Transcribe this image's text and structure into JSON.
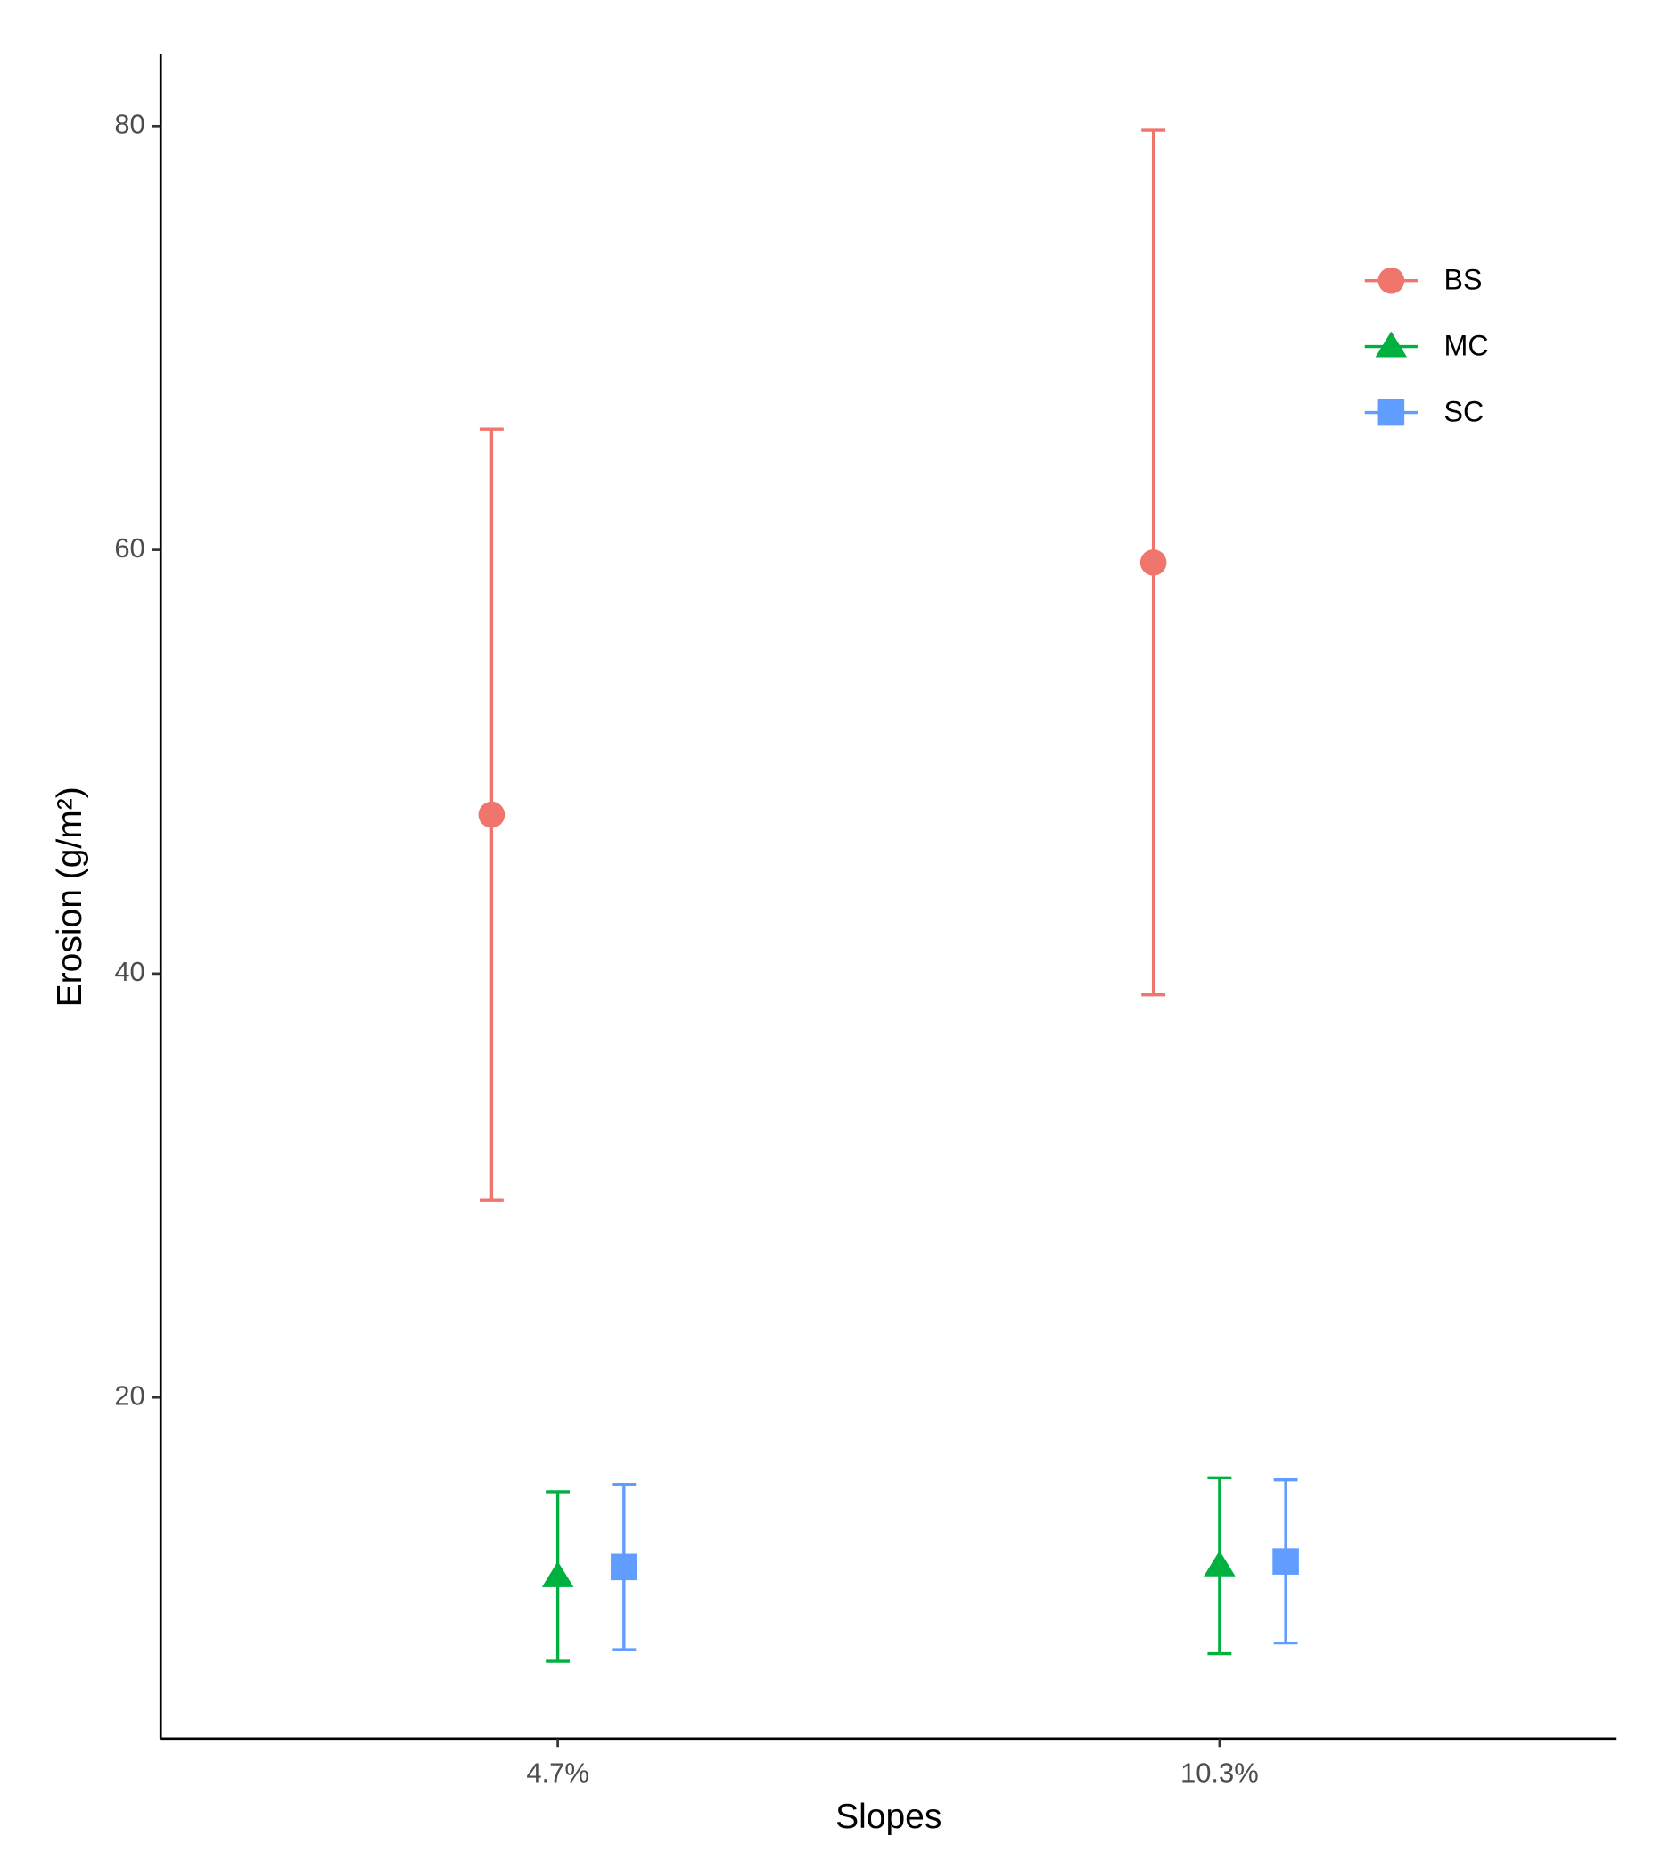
{
  "chart_data": {
    "type": "errorpoint",
    "x_label": "Slopes",
    "y_label": "Erosion (g/m²)",
    "categories": [
      "4.7%",
      "10.3%"
    ],
    "series": [
      {
        "name": "BS",
        "color": "#f0766d",
        "marker": "circle",
        "values": [
          47.5,
          59.4
        ],
        "errors": [
          18.2,
          20.4
        ]
      },
      {
        "name": "MC",
        "color": "#00b140",
        "marker": "triangle",
        "values": [
          11.55,
          12.06
        ],
        "errors": [
          4.0,
          4.15
        ]
      },
      {
        "name": "SC",
        "color": "#619cff",
        "marker": "square",
        "values": [
          12.0,
          12.26
        ],
        "errors": [
          3.9,
          3.85
        ]
      }
    ],
    "ylim": [
      3.9,
      83.4
    ],
    "yticks": [
      20,
      40,
      60,
      80
    ],
    "grid": false,
    "legend": "top-right"
  }
}
